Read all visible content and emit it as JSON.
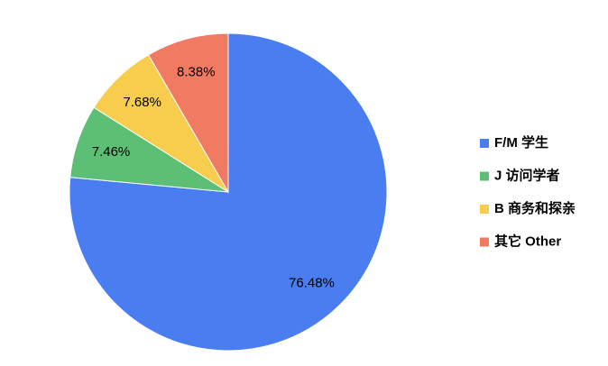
{
  "chart_data": {
    "type": "pie",
    "categories": [
      "F/M 学生",
      "J 访问学者",
      "B 商务和探亲",
      "其它 Other"
    ],
    "values": [
      76.48,
      7.46,
      7.68,
      8.38
    ],
    "value_labels": [
      "76.48%",
      "7.46%",
      "7.68%",
      "8.38%"
    ],
    "colors": [
      "#4a7ef0",
      "#5cbf75",
      "#f8cc4c",
      "#f07b62"
    ],
    "legend": "right"
  }
}
